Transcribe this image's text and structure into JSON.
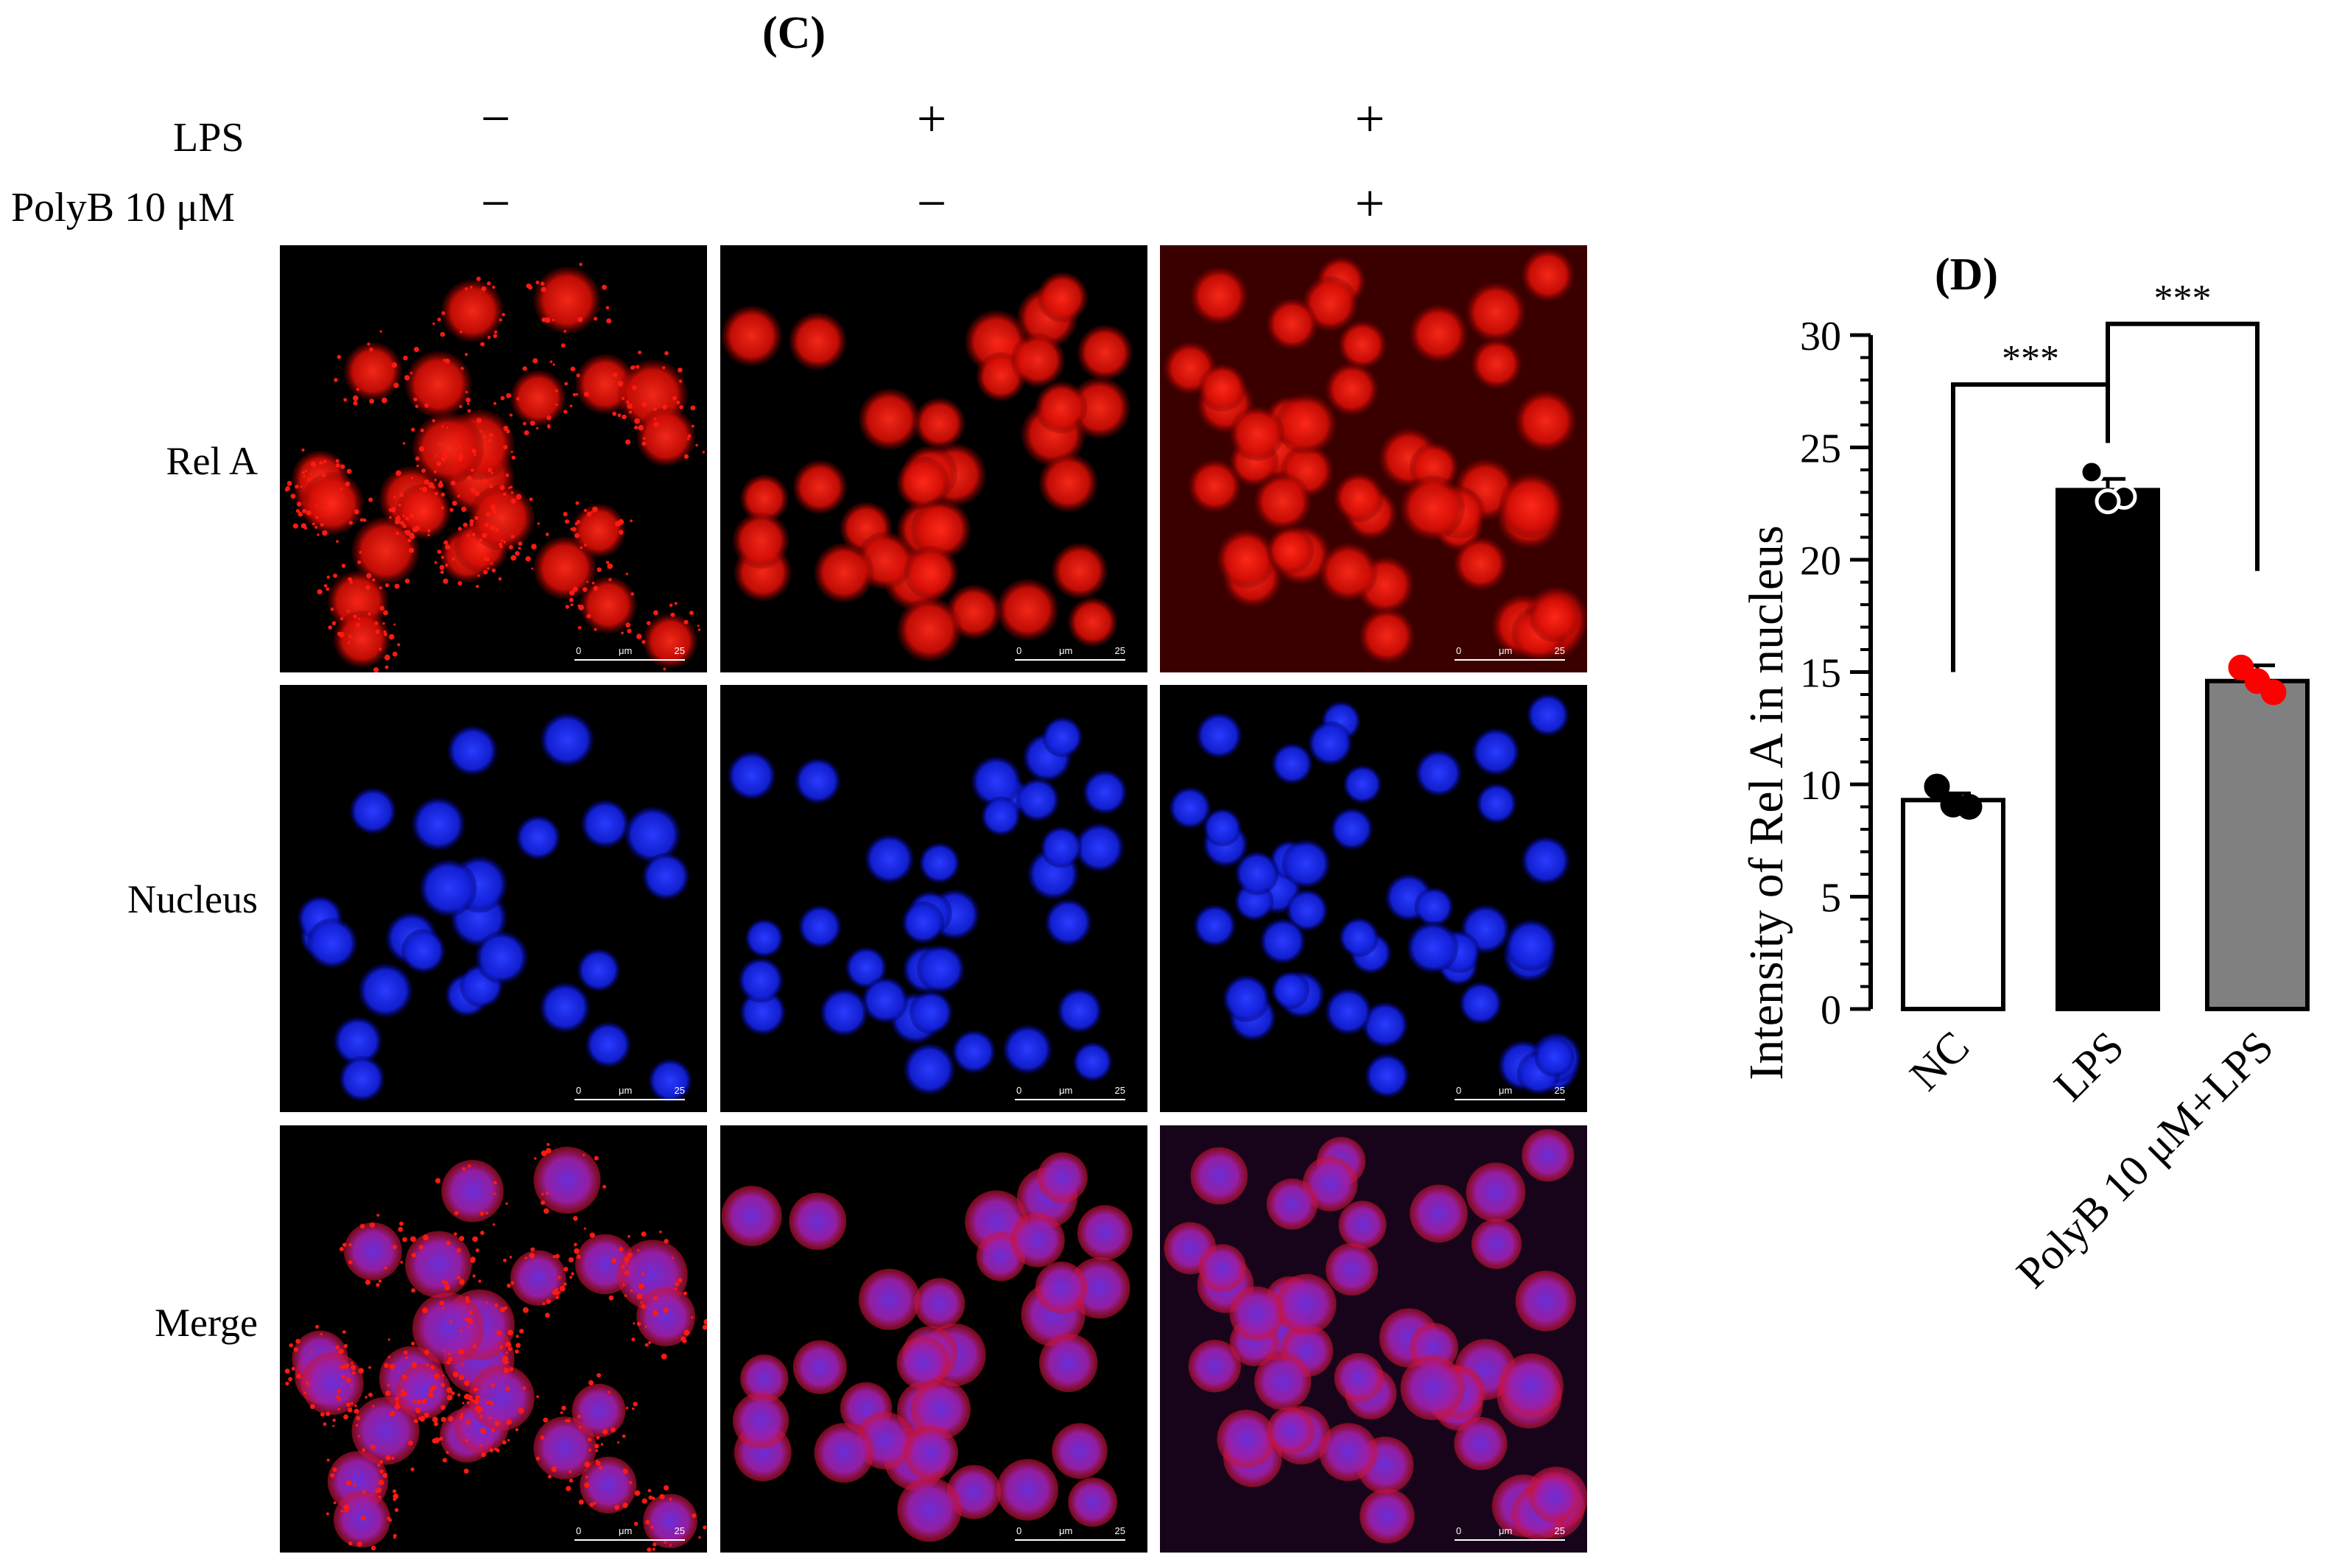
{
  "panel_c": {
    "label": "(C)",
    "treatments": [
      {
        "name": "LPS",
        "signs": [
          "−",
          "+",
          "+"
        ]
      },
      {
        "name": "PolyB 10 μM",
        "signs": [
          "−",
          "−",
          "+"
        ]
      }
    ],
    "rows": [
      {
        "label": "Rel A",
        "channel": "red"
      },
      {
        "label": "Nucleus",
        "channel": "blue"
      },
      {
        "label": "Merge",
        "channel": "merge"
      }
    ],
    "scale_bar": {
      "start": "0",
      "unit": "μm",
      "end": "25"
    }
  },
  "panel_d": {
    "label": "(D)",
    "chart_data": {
      "type": "bar",
      "categories": [
        "NC",
        "LPS",
        "PolyB 10 μM+LPS"
      ],
      "values": [
        9.3,
        23.1,
        14.6
      ],
      "errors": [
        0.3,
        0.5,
        0.7
      ],
      "points": [
        [
          9.9,
          9.0,
          9.1
        ],
        [
          23.9,
          22.8,
          22.6
        ],
        [
          15.2,
          14.1,
          14.6
        ]
      ],
      "bar_colors": [
        "#ffffff",
        "#000000",
        "#808080"
      ],
      "point_colors": [
        "#000000",
        "#000000",
        "#ff0000"
      ],
      "ylabel": "Intensity of Rel A in nucleus",
      "xlabel": "",
      "ylim": [
        0,
        30
      ],
      "yticks": [
        0,
        5,
        10,
        15,
        20,
        25,
        30
      ],
      "significance": [
        {
          "from": 0,
          "to": 1,
          "label": "***"
        },
        {
          "from": 1,
          "to": 2,
          "label": "***"
        }
      ]
    }
  }
}
